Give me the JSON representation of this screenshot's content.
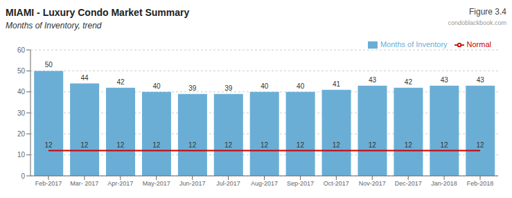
{
  "chart_data": {
    "type": "bar",
    "title": "MIAMI - Luxury Condo Market Summary",
    "subtitle": "Months of Inventory, trend",
    "categories": [
      "Feb-2017",
      "Mar- 2017",
      "Apr-2017",
      "May-2017",
      "Jun-2017",
      "Jul-2017",
      "Aug-2017",
      "Sep-2017",
      "Oct-2017",
      "Nov-2017",
      "Dec-2017",
      "Jan-2018",
      "Feb-2018"
    ],
    "series": [
      {
        "name": "Months of Inventory",
        "type": "bar",
        "color": "#6aaed6",
        "values": [
          50,
          44,
          42,
          40,
          39,
          39,
          40,
          40,
          41,
          43,
          42,
          43,
          43
        ]
      },
      {
        "name": "Normal",
        "type": "line",
        "color": "#cc0000",
        "values": [
          12,
          12,
          12,
          12,
          12,
          12,
          12,
          12,
          12,
          12,
          12,
          12,
          12
        ]
      }
    ],
    "ylim": [
      0,
      60
    ],
    "yticks": [
      0,
      10,
      20,
      30,
      40,
      50,
      60
    ],
    "grid": true,
    "legend": "upper right",
    "data_labels": true,
    "annotations": [
      {
        "text": "Figure 3.4"
      },
      {
        "text": "condoblackbook.com"
      }
    ]
  }
}
